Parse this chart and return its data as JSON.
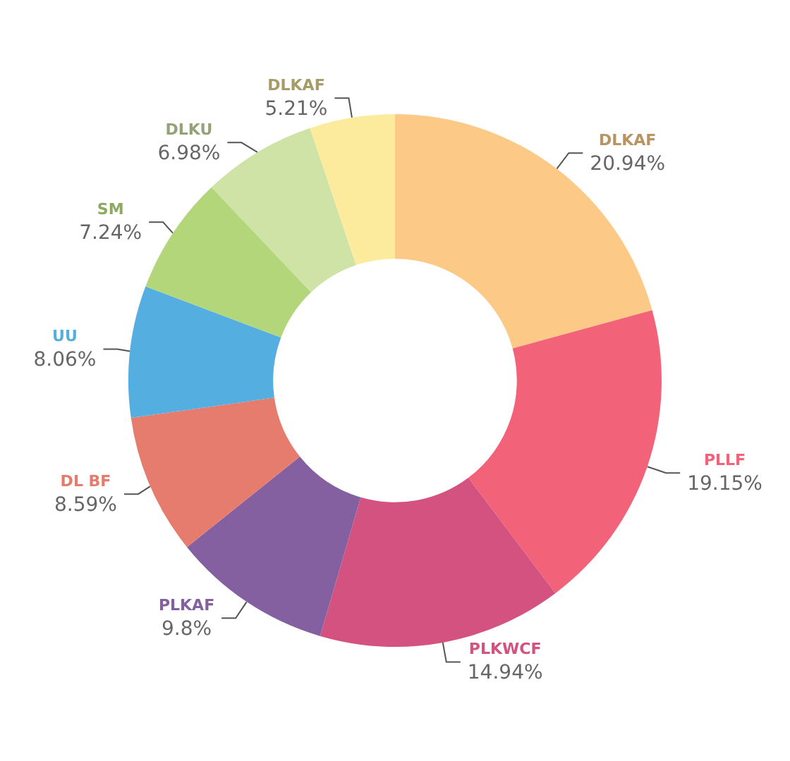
{
  "chart_data": {
    "type": "donut",
    "categories": [
      "DLKAF",
      "PLLF",
      "PLKWCF",
      "PLKAF",
      "DL BF",
      "UU",
      "SM",
      "DLKU",
      "DLKAF"
    ],
    "values": [
      20.94,
      19.15,
      14.94,
      9.8,
      8.59,
      8.06,
      7.24,
      6.98,
      5.21
    ],
    "value_labels": [
      "20.94%",
      "19.15%",
      "14.94%",
      "9.8%",
      "8.59%",
      "8.06%",
      "7.24%",
      "6.98%",
      "5.21%"
    ],
    "colors": [
      "#fcc986",
      "#f2637a",
      "#d4527f",
      "#8560a0",
      "#e57c6e",
      "#55aee0",
      "#b3d67a",
      "#cfe3a6",
      "#fdeb9d"
    ],
    "legend": false
  }
}
